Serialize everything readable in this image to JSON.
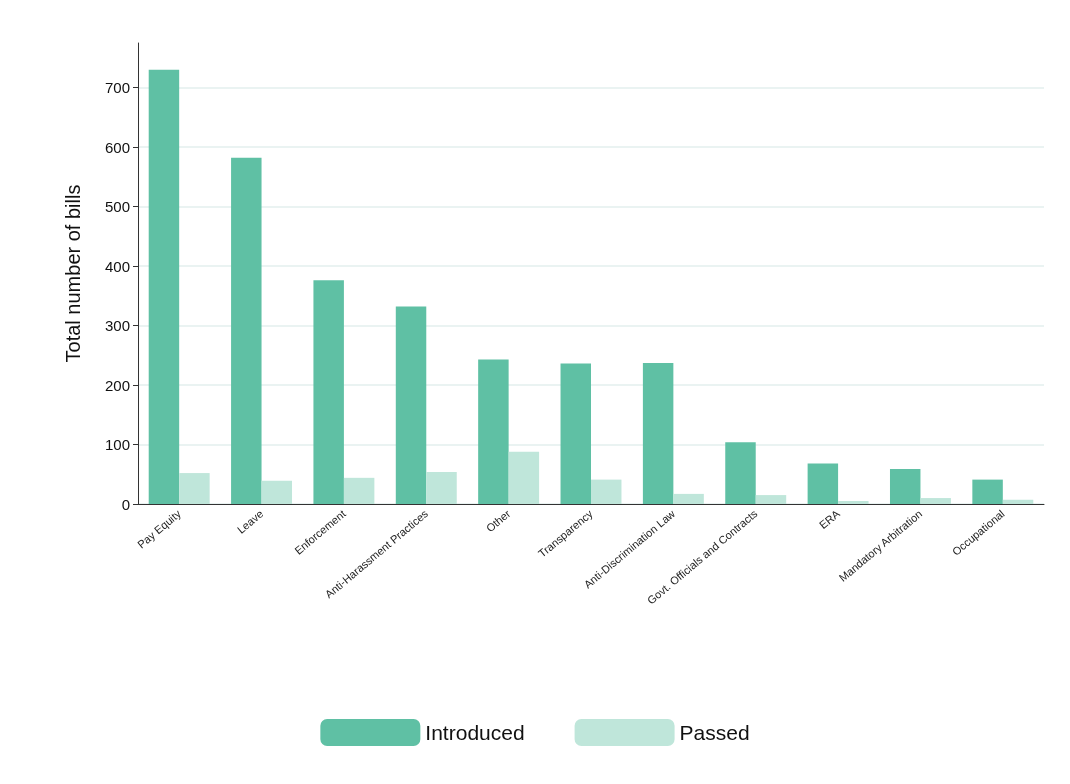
{
  "chart_data": {
    "type": "bar",
    "ylabel": "Total number of bills",
    "categories": [
      "Pay Equity",
      "Leave",
      "Enforcement",
      "Anti-Harassment Practices",
      "Other",
      "Transparency",
      "Anti-Discrimination Law",
      "Govt. Officials and Contracts",
      "ERA",
      "Mandatory Arbitration",
      "Occupational"
    ],
    "series": [
      {
        "name": "Introduced",
        "color": "#5fc0a4",
        "values": [
          730,
          582,
          376,
          332,
          243,
          236,
          237,
          104,
          68,
          59,
          41
        ]
      },
      {
        "name": "Passed",
        "color": "#bfe6da",
        "values": [
          52,
          39,
          44,
          54,
          88,
          41,
          17,
          15,
          5,
          10,
          7
        ]
      }
    ],
    "ylim": [
      0,
      775
    ],
    "yticks": [
      0,
      100,
      200,
      300,
      400,
      500,
      600,
      700
    ],
    "grid": "y",
    "legend": "bottom"
  }
}
